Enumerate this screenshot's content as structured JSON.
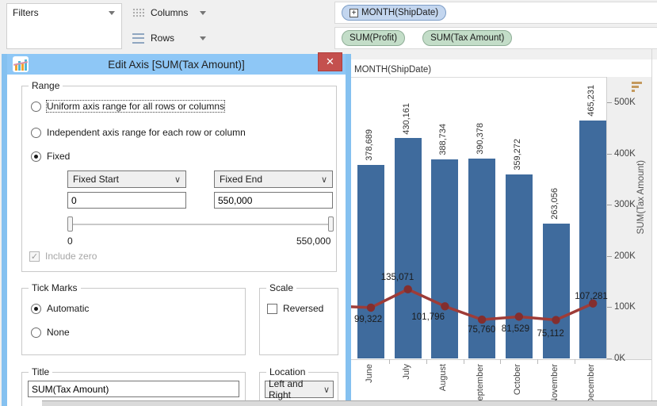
{
  "shelves": {
    "filters": {
      "label": "Filters"
    },
    "columns": {
      "label": "Columns",
      "pills": [
        {
          "label": "MONTH(ShipDate)",
          "expand_glyph": "+"
        }
      ]
    },
    "rows": {
      "label": "Rows",
      "pills": [
        {
          "label": "SUM(Profit)"
        },
        {
          "label": "SUM(Tax Amount)"
        }
      ]
    }
  },
  "dialog": {
    "title": "Edit Axis [SUM(Tax Amount)]",
    "close_glyph": "✕",
    "range": {
      "legend": "Range",
      "option_uniform": "Uniform axis range for all rows or columns",
      "option_independent": "Independent axis range for each row or column",
      "option_fixed": "Fixed",
      "fixed_start_label": "Fixed Start",
      "fixed_end_label": "Fixed End",
      "start_value": "0",
      "end_value": "550,000",
      "slider_min_label": "0",
      "slider_max_label": "550,000",
      "include_zero_label": "Include zero",
      "include_zero_checked": "✓"
    },
    "tick_marks": {
      "legend": "Tick Marks",
      "option_automatic": "Automatic",
      "option_none": "None"
    },
    "scale": {
      "legend": "Scale",
      "reversed_label": "Reversed"
    },
    "title_group": {
      "legend": "Title",
      "value": "SUM(Tax Amount)"
    },
    "location_group": {
      "legend": "Location",
      "value": "Left and Right"
    }
  },
  "colors": {
    "bar": "#3f6b9d",
    "line": "#9e3c38",
    "marker": "#832e2e",
    "titlebar": "#8ec7f6",
    "close_button": "#c4504e",
    "sort_icon": "#c49a5e",
    "pill_dimension": "#c3d6ef",
    "pill_measure": "#c3ddc8"
  },
  "chart_data": {
    "type": "bar",
    "column_header": "MONTH(ShipDate)",
    "categories": [
      "June",
      "July",
      "August",
      "September",
      "October",
      "November",
      "December"
    ],
    "series": [
      {
        "name": "SUM(Tax Amount)",
        "mark": "bar",
        "color": "#3f6b9d",
        "values": [
          378689,
          430161,
          388734,
          390378,
          359272,
          263056,
          465231
        ],
        "labels": [
          "378,689",
          "430,161",
          "388,734",
          "390,378",
          "359,272",
          "263,056",
          "465,231"
        ]
      },
      {
        "name": "SUM(Profit)",
        "mark": "line",
        "color": "#9e3c38",
        "values": [
          99322,
          135071,
          101796,
          75760,
          81529,
          75112,
          107281
        ],
        "labels": [
          "99,322",
          "135,071",
          "101,796",
          "75,760",
          "81,529",
          "75,112",
          "107,281"
        ]
      }
    ],
    "y_axis": {
      "title": "SUM(Tax Amount)",
      "position": "right",
      "range": [
        0,
        550000
      ],
      "tick_values": [
        0,
        100000,
        200000,
        300000,
        400000,
        500000
      ],
      "tick_labels": [
        "0K",
        "100K",
        "200K",
        "300K",
        "400K",
        "500K"
      ]
    },
    "grid": false,
    "legend_position": "none"
  }
}
